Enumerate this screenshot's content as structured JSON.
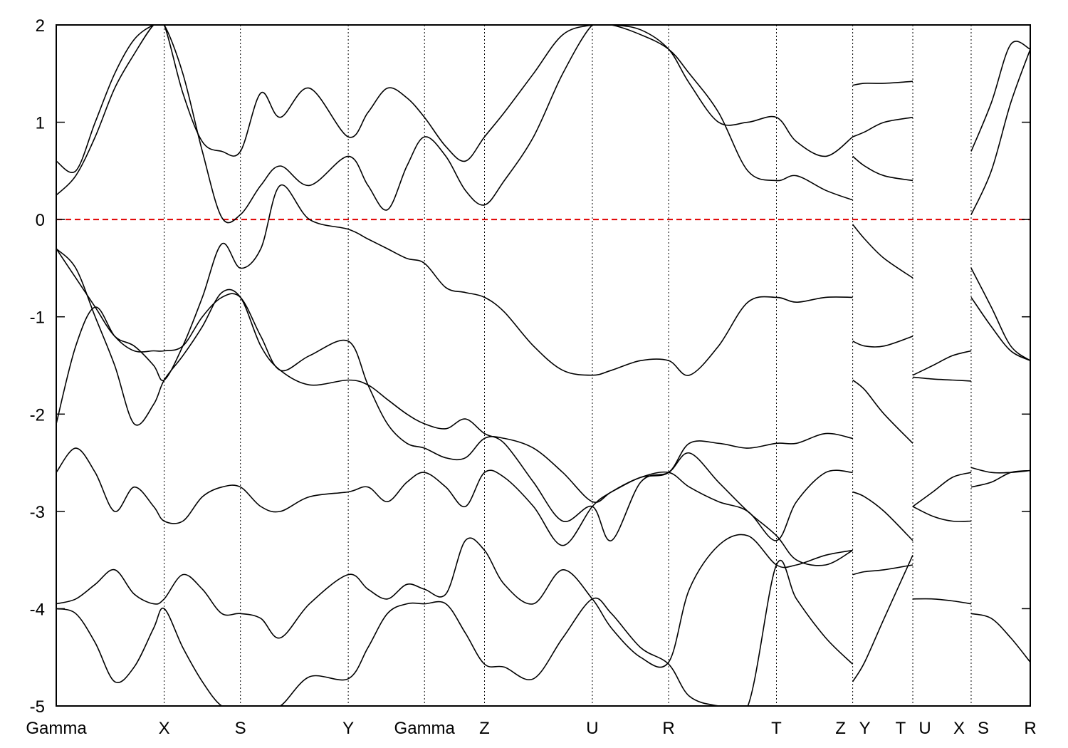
{
  "chart_data": {
    "type": "line",
    "title": "",
    "xlabel": "",
    "ylabel": "",
    "ylim": [
      -5,
      2
    ],
    "yticks": [
      -5,
      -4,
      -3,
      -2,
      -1,
      0,
      1,
      2
    ],
    "ytick_labels": [
      "-5",
      "-4",
      "-3",
      "-2",
      "-1",
      "0",
      "1",
      "2"
    ],
    "xlim": [
      0,
      1
    ],
    "kpoints": [
      {
        "label": "Gamma",
        "x": 0.0
      },
      {
        "label": "X",
        "x": 0.1108
      },
      {
        "label": "S",
        "x": 0.1891
      },
      {
        "label": "Y",
        "x": 0.2998
      },
      {
        "label": "Gamma",
        "x": 0.3781
      },
      {
        "label": "Z",
        "x": 0.4397
      },
      {
        "label": "U",
        "x": 0.5504
      },
      {
        "label": "R",
        "x": 0.6287
      },
      {
        "label": "T",
        "x": 0.7394
      },
      {
        "label": "Z",
        "x": 0.8177
      },
      {
        "label": "Y",
        "x": 0.8177
      },
      {
        "label": "T",
        "x": 0.8794
      },
      {
        "label": "U",
        "x": 0.8794
      },
      {
        "label": "X",
        "x": 0.9393
      },
      {
        "label": "S",
        "x": 0.9393
      },
      {
        "label": "R",
        "x": 1.0
      }
    ],
    "reference_line": {
      "y": 0,
      "color": "#e00000",
      "style": "dashed"
    },
    "grid": "vertical dotted lines at k-points",
    "series": [
      {
        "x": [
          0,
          0.02,
          0.04,
          0.06,
          0.08,
          0.1,
          0.1108,
          0.13,
          0.15,
          0.17,
          0.1891,
          0.21,
          0.23,
          0.26,
          0.2998,
          0.32,
          0.34,
          0.36,
          0.3781,
          0.4,
          0.42,
          0.4397,
          0.46,
          0.49,
          0.52,
          0.5504,
          0.57,
          0.6,
          0.6287,
          0.65,
          0.68,
          0.71,
          0.7394,
          0.76,
          0.79,
          0.8177
        ],
        "values": [
          -4.0,
          -4.05,
          -4.35,
          -4.75,
          -4.6,
          -4.2,
          -4.0,
          -4.4,
          -4.75,
          -5.0,
          -5.0,
          -5.0,
          -5.0,
          -4.7,
          -4.72,
          -4.4,
          -4.05,
          -3.95,
          -3.95,
          -3.95,
          -4.25,
          -4.57,
          -4.6,
          -4.72,
          -4.3,
          -3.9,
          -4.05,
          -4.4,
          -4.57,
          -4.9,
          -5.0,
          -5.0,
          -3.55,
          -3.9,
          -4.3,
          -4.57
        ]
      },
      {
        "x": [
          0,
          0.02,
          0.04,
          0.06,
          0.08,
          0.1,
          0.1108,
          0.13,
          0.15,
          0.17,
          0.1891,
          0.21,
          0.23,
          0.26,
          0.2998,
          0.32,
          0.34,
          0.36,
          0.3781,
          0.4,
          0.42,
          0.4397,
          0.46,
          0.49,
          0.52,
          0.5504,
          0.57,
          0.6,
          0.6287,
          0.65,
          0.68,
          0.71,
          0.7394,
          0.76,
          0.79,
          0.8177
        ],
        "values": [
          -3.95,
          -3.9,
          -3.75,
          -3.6,
          -3.85,
          -3.95,
          -3.9,
          -3.65,
          -3.8,
          -4.05,
          -4.05,
          -4.1,
          -4.3,
          -3.95,
          -3.65,
          -3.8,
          -3.9,
          -3.75,
          -3.8,
          -3.85,
          -3.3,
          -3.4,
          -3.75,
          -3.95,
          -3.6,
          -3.9,
          -4.2,
          -4.5,
          -4.55,
          -3.8,
          -3.35,
          -3.25,
          -3.55,
          -3.55,
          -3.45,
          -3.4
        ]
      },
      {
        "x": [
          0,
          0.02,
          0.04,
          0.06,
          0.08,
          0.1,
          0.1108,
          0.13,
          0.15,
          0.17,
          0.1891,
          0.21,
          0.23,
          0.26,
          0.2998,
          0.32,
          0.34,
          0.36,
          0.3781,
          0.4,
          0.42,
          0.4397,
          0.46,
          0.49,
          0.52,
          0.5504,
          0.57,
          0.6,
          0.6287,
          0.65,
          0.68,
          0.71,
          0.7394,
          0.76,
          0.79,
          0.8177
        ],
        "values": [
          -2.6,
          -2.35,
          -2.6,
          -3.0,
          -2.75,
          -2.95,
          -3.1,
          -3.1,
          -2.85,
          -2.75,
          -2.75,
          -2.95,
          -3.0,
          -2.85,
          -2.8,
          -2.75,
          -2.9,
          -2.7,
          -2.6,
          -2.75,
          -2.95,
          -2.6,
          -2.65,
          -2.95,
          -3.35,
          -2.95,
          -2.8,
          -2.65,
          -2.6,
          -2.75,
          -2.9,
          -3.0,
          -3.3,
          -2.9,
          -2.6,
          -2.6
        ]
      },
      {
        "x": [
          0,
          0.02,
          0.04,
          0.06,
          0.08,
          0.1,
          0.1108,
          0.13,
          0.15,
          0.17,
          0.1891,
          0.21,
          0.23,
          0.26,
          0.2998,
          0.32,
          0.34,
          0.36,
          0.3781,
          0.4,
          0.42,
          0.4397,
          0.46,
          0.49,
          0.52,
          0.5504,
          0.57,
          0.6,
          0.6287,
          0.65,
          0.68,
          0.71,
          0.7394,
          0.76,
          0.79,
          0.8177
        ],
        "values": [
          -2.1,
          -1.3,
          -0.9,
          -1.2,
          -1.35,
          -1.35,
          -1.35,
          -1.3,
          -1.0,
          -0.8,
          -0.8,
          -1.2,
          -1.55,
          -1.4,
          -1.25,
          -1.7,
          -2.1,
          -2.3,
          -2.35,
          -2.45,
          -2.45,
          -2.25,
          -2.25,
          -2.35,
          -2.6,
          -2.9,
          -2.8,
          -2.65,
          -2.6,
          -2.3,
          -2.3,
          -2.35,
          -2.3,
          -2.3,
          -2.2,
          -2.25
        ]
      },
      {
        "x": [
          0,
          0.02,
          0.04,
          0.06,
          0.08,
          0.1,
          0.1108,
          0.13,
          0.15,
          0.17,
          0.1891,
          0.21,
          0.23,
          0.26,
          0.2998,
          0.32,
          0.34,
          0.36,
          0.3781,
          0.4,
          0.42,
          0.4397,
          0.46,
          0.49,
          0.52,
          0.5504,
          0.57,
          0.6,
          0.6287,
          0.65,
          0.68,
          0.71,
          0.7394,
          0.76,
          0.79,
          0.8177
        ],
        "values": [
          -0.3,
          -0.6,
          -0.9,
          -1.2,
          -1.3,
          -1.5,
          -1.65,
          -1.3,
          -0.8,
          -0.25,
          -0.5,
          -0.3,
          0.35,
          0.0,
          -0.1,
          -0.2,
          -0.3,
          -0.4,
          -0.45,
          -0.7,
          -0.75,
          -0.8,
          -0.95,
          -1.3,
          -1.55,
          -1.6,
          -1.55,
          -1.45,
          -1.45,
          -1.6,
          -1.3,
          -0.85,
          -0.8,
          -0.85,
          -0.8,
          -0.8
        ]
      },
      {
        "x": [
          0,
          0.02,
          0.04,
          0.06,
          0.08,
          0.1,
          0.1108,
          0.13,
          0.15,
          0.17,
          0.1891,
          0.21,
          0.23,
          0.26,
          0.2998,
          0.32,
          0.34,
          0.36,
          0.3781,
          0.4,
          0.42,
          0.4397,
          0.46,
          0.49,
          0.52,
          0.5504,
          0.57,
          0.6,
          0.6287,
          0.65,
          0.68,
          0.71,
          0.7394,
          0.76,
          0.79,
          0.8177
        ],
        "values": [
          -0.3,
          -0.5,
          -1.0,
          -1.5,
          -2.1,
          -1.9,
          -1.65,
          -1.4,
          -1.1,
          -0.75,
          -0.8,
          -1.3,
          -1.55,
          -1.7,
          -1.65,
          -1.7,
          -1.85,
          -2.0,
          -2.1,
          -2.15,
          -2.05,
          -2.2,
          -2.3,
          -2.7,
          -3.1,
          -2.95,
          -3.3,
          -2.7,
          -2.6,
          -2.4,
          -2.7,
          -3.0,
          -3.25,
          -3.5,
          -3.55,
          -3.4
        ]
      },
      {
        "x": [
          0,
          0.02,
          0.04,
          0.06,
          0.08,
          0.1,
          0.1108,
          0.13,
          0.15,
          0.17,
          0.1891,
          0.21,
          0.23,
          0.26,
          0.2998,
          0.32,
          0.34,
          0.36,
          0.3781,
          0.4,
          0.42,
          0.4397,
          0.46,
          0.49,
          0.52,
          0.5504,
          0.57,
          0.6,
          0.6287,
          0.65,
          0.68,
          0.71,
          0.7394,
          0.76,
          0.79,
          0.8177
        ],
        "values": [
          0.25,
          0.45,
          0.85,
          1.35,
          1.7,
          2.0,
          2.0,
          1.3,
          0.8,
          0.7,
          0.7,
          1.3,
          1.05,
          1.35,
          0.85,
          1.1,
          1.35,
          1.25,
          1.05,
          0.75,
          0.6,
          0.85,
          1.1,
          1.5,
          1.9,
          2.0,
          2.0,
          1.9,
          1.75,
          1.5,
          1.1,
          0.5,
          0.4,
          0.45,
          0.3,
          0.2
        ]
      },
      {
        "x": [
          0,
          0.02,
          0.04,
          0.06,
          0.08,
          0.1,
          0.1108,
          0.13,
          0.15,
          0.17,
          0.1891,
          0.21,
          0.23,
          0.26,
          0.2998,
          0.32,
          0.34,
          0.36,
          0.3781,
          0.4,
          0.42,
          0.4397,
          0.46,
          0.49,
          0.52,
          0.5504,
          0.57,
          0.6,
          0.6287,
          0.65,
          0.68,
          0.71,
          0.7394,
          0.76,
          0.79,
          0.8177
        ],
        "values": [
          0.6,
          0.5,
          1.0,
          1.5,
          1.85,
          2.0,
          2.0,
          1.5,
          0.7,
          0.02,
          0.05,
          0.35,
          0.55,
          0.35,
          0.65,
          0.35,
          0.1,
          0.55,
          0.85,
          0.65,
          0.3,
          0.15,
          0.4,
          0.85,
          1.5,
          2.0,
          2.0,
          1.95,
          1.75,
          1.4,
          1.0,
          1.0,
          1.05,
          0.8,
          0.65,
          0.85
        ]
      },
      {
        "x": [
          0.8177,
          0.83,
          0.85,
          0.8794
        ],
        "values": [
          -4.75,
          -4.55,
          -4.1,
          -3.45
        ]
      },
      {
        "x": [
          0.8177,
          0.83,
          0.85,
          0.8794
        ],
        "values": [
          -3.65,
          -3.62,
          -3.6,
          -3.55
        ]
      },
      {
        "x": [
          0.8177,
          0.83,
          0.85,
          0.8794
        ],
        "values": [
          -2.8,
          -2.85,
          -3.0,
          -3.3
        ]
      },
      {
        "x": [
          0.8177,
          0.83,
          0.85,
          0.8794
        ],
        "values": [
          -1.65,
          -1.75,
          -2.0,
          -2.3
        ]
      },
      {
        "x": [
          0.8177,
          0.83,
          0.85,
          0.8794
        ],
        "values": [
          -1.25,
          -1.3,
          -1.3,
          -1.2
        ]
      },
      {
        "x": [
          0.8177,
          0.83,
          0.85,
          0.8794
        ],
        "values": [
          -0.05,
          -0.2,
          -0.4,
          -0.6
        ]
      },
      {
        "x": [
          0.8177,
          0.83,
          0.85,
          0.8794
        ],
        "values": [
          0.65,
          0.55,
          0.45,
          0.4
        ]
      },
      {
        "x": [
          0.8177,
          0.83,
          0.85,
          0.8794
        ],
        "values": [
          0.85,
          0.9,
          1.0,
          1.05
        ]
      },
      {
        "x": [
          0.8177,
          0.83,
          0.85,
          0.8794
        ],
        "values": [
          1.38,
          1.4,
          1.4,
          1.42
        ]
      },
      {
        "x": [
          0.8794,
          0.9,
          0.92,
          0.9393
        ],
        "values": [
          -3.9,
          -3.9,
          -3.92,
          -3.95
        ]
      },
      {
        "x": [
          0.8794,
          0.9,
          0.92,
          0.9393
        ],
        "values": [
          -2.95,
          -2.8,
          -2.65,
          -2.6
        ]
      },
      {
        "x": [
          0.8794,
          0.9,
          0.92,
          0.9393
        ],
        "values": [
          -2.95,
          -3.05,
          -3.1,
          -3.1
        ]
      },
      {
        "x": [
          0.8794,
          0.9,
          0.92,
          0.9393
        ],
        "values": [
          -1.6,
          -1.5,
          -1.4,
          -1.35
        ]
      },
      {
        "x": [
          0.8794,
          0.9,
          0.92,
          0.9393
        ],
        "values": [
          -1.62,
          -1.64,
          -1.65,
          -1.66
        ]
      },
      {
        "x": [
          0.9393,
          0.96,
          0.98,
          1.0
        ],
        "values": [
          -4.05,
          -4.1,
          -4.3,
          -4.55
        ]
      },
      {
        "x": [
          0.9393,
          0.96,
          0.98,
          1.0
        ],
        "values": [
          -2.75,
          -2.7,
          -2.6,
          -2.58
        ]
      },
      {
        "x": [
          0.9393,
          0.96,
          0.98,
          1.0
        ],
        "values": [
          -2.55,
          -2.6,
          -2.6,
          -2.58
        ]
      },
      {
        "x": [
          0.9393,
          0.96,
          0.98,
          1.0
        ],
        "values": [
          -0.8,
          -1.1,
          -1.35,
          -1.45
        ]
      },
      {
        "x": [
          0.9393,
          0.96,
          0.98,
          1.0
        ],
        "values": [
          -0.5,
          -0.9,
          -1.3,
          -1.45
        ]
      },
      {
        "x": [
          0.9393,
          0.96,
          0.98,
          1.0
        ],
        "values": [
          0.05,
          0.5,
          1.2,
          1.75
        ]
      },
      {
        "x": [
          0.9393,
          0.96,
          0.98,
          1.0
        ],
        "values": [
          0.7,
          1.2,
          1.8,
          1.75
        ]
      }
    ]
  }
}
